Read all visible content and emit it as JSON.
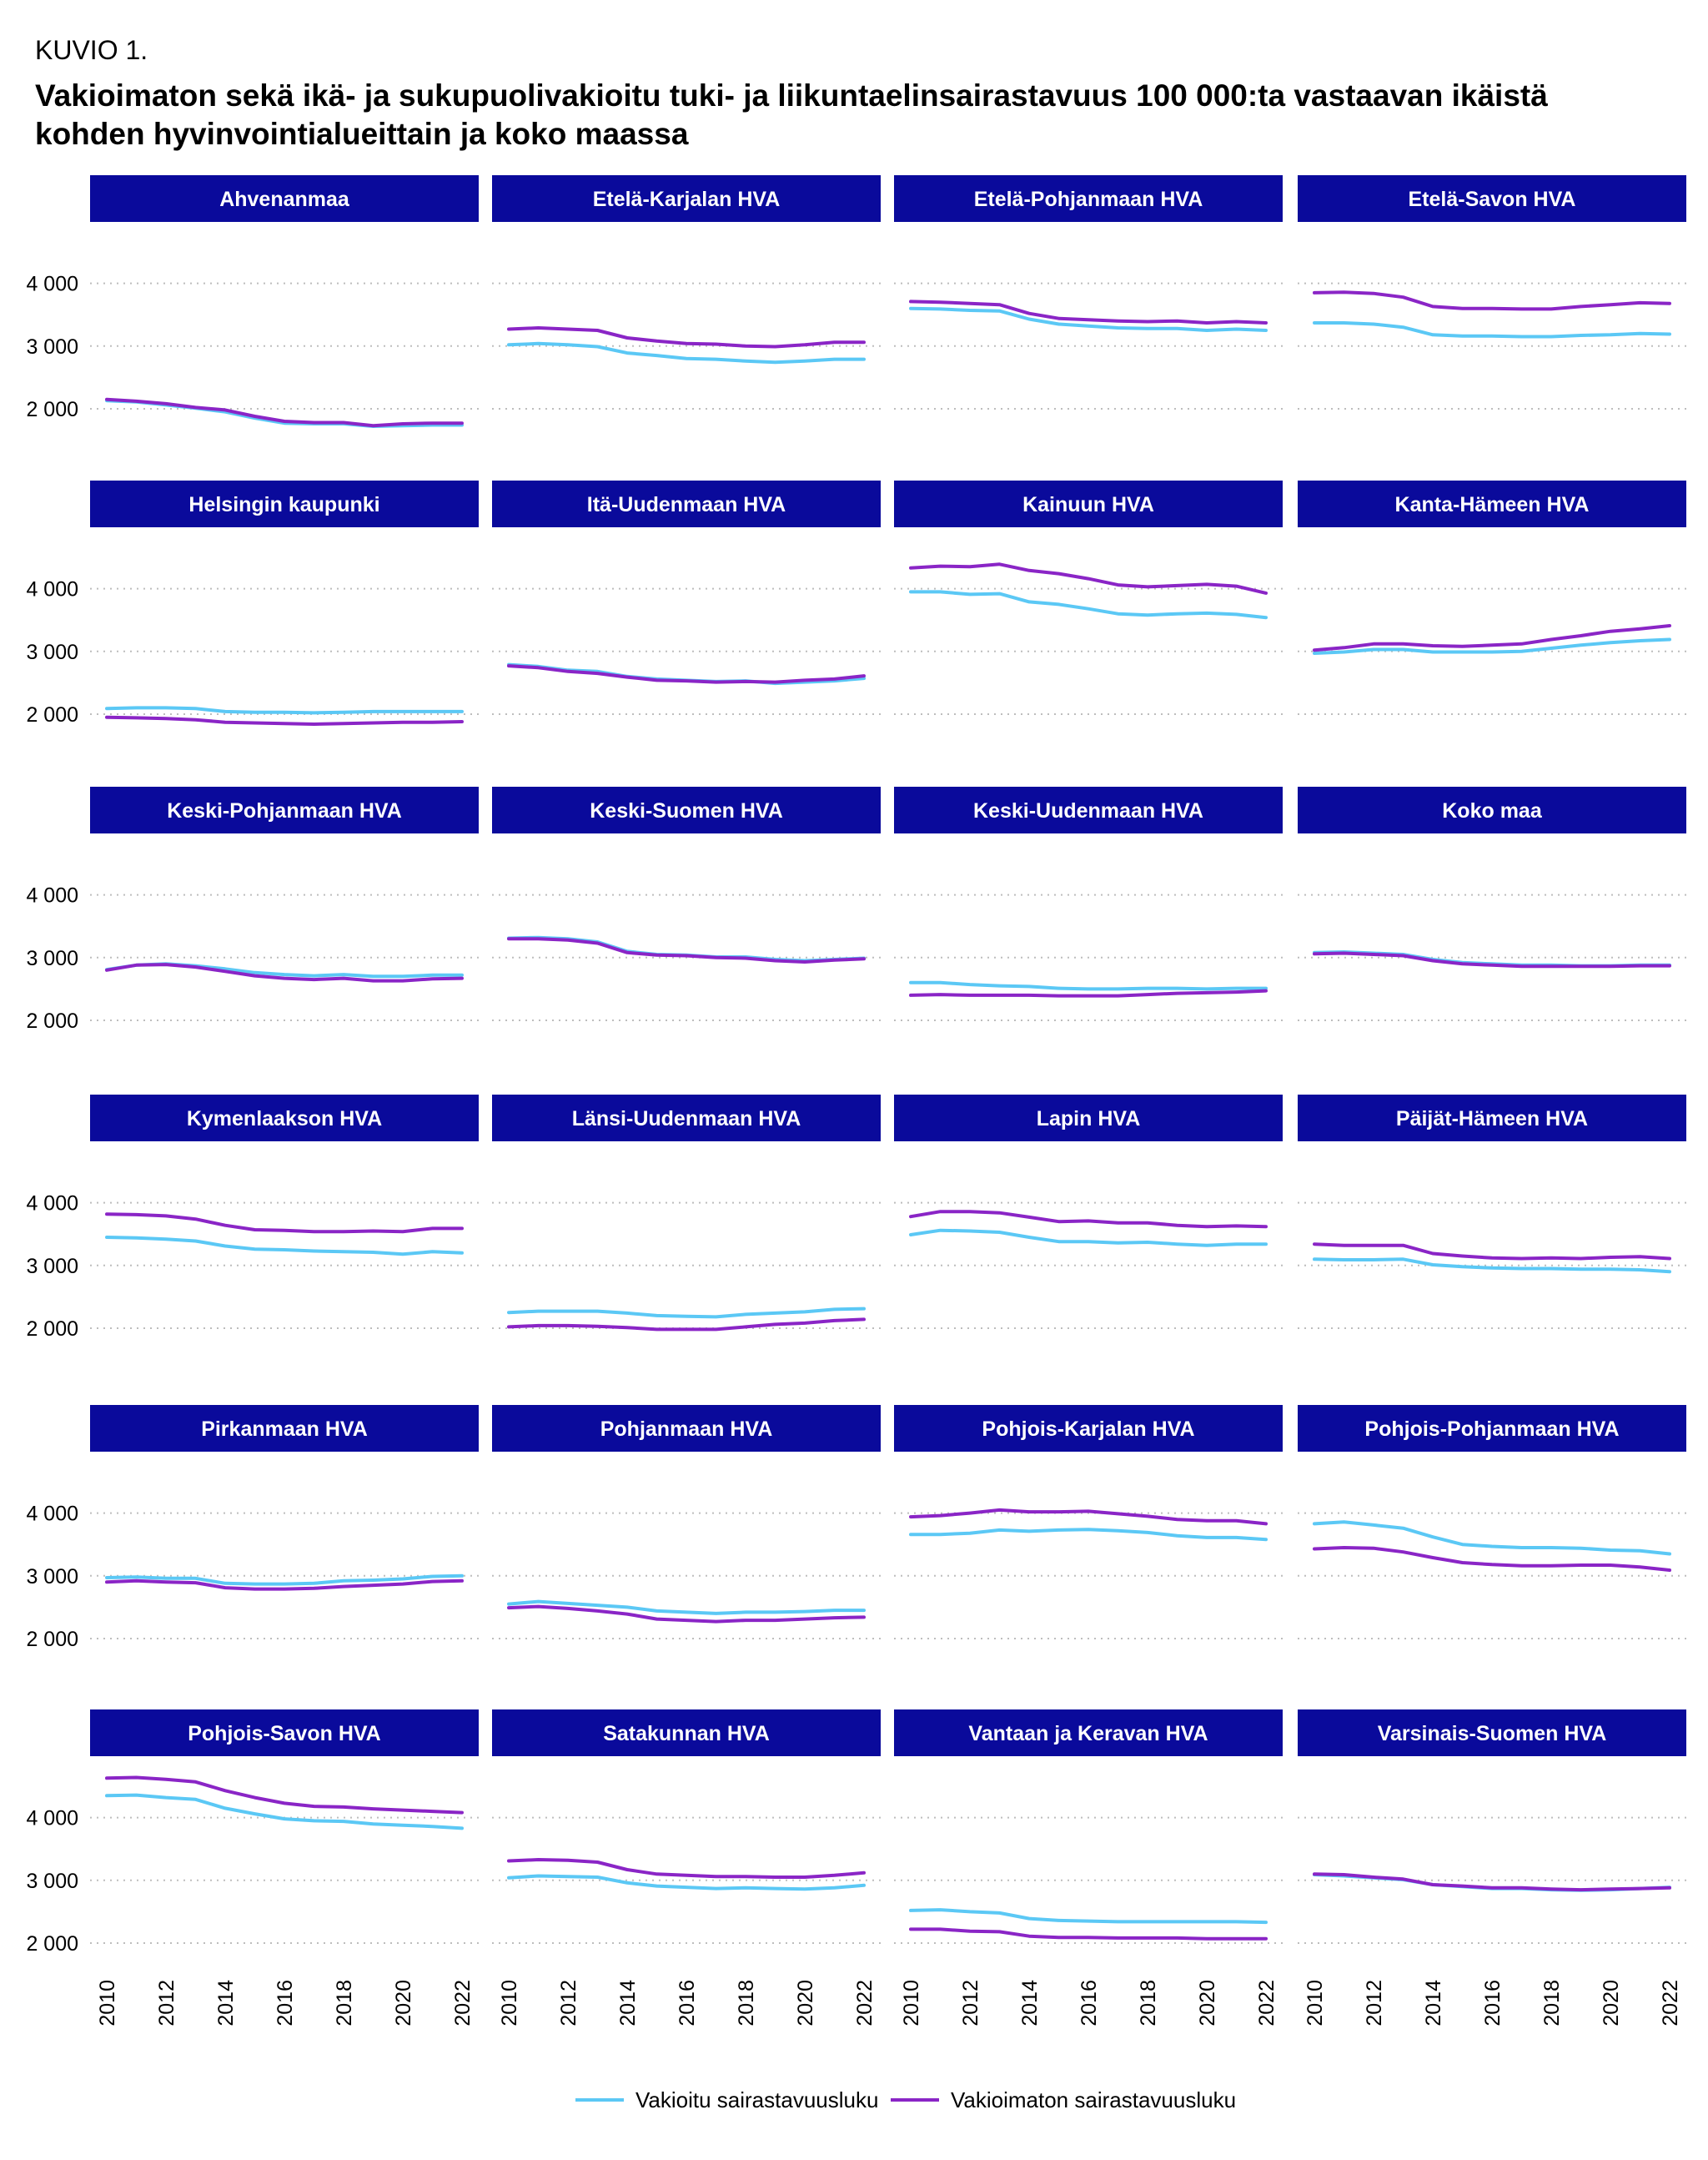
{
  "header": {
    "kuvio": "KUVIO 1.",
    "title": "Vakioimaton sekä ikä- ja sukupuolivakioitu tuki- ja liikuntaelinsairastavuus 100 000:ta vastaavan ikäistä kohden hyvinvointialueittain ja koko maassa"
  },
  "colors": {
    "standardized": "#5bc8f5",
    "unstandardized": "#8a25c6",
    "strip": "#0a0a9b",
    "grid": "#bdbdbd"
  },
  "legend": {
    "standardized_label": "Vakioitu sairastavuusluku",
    "unstandardized_label": "Vakioimaton sairastavuusluku"
  },
  "chart_data": {
    "type": "line",
    "layout": "small-multiples 6x4",
    "grid": "horizontal dotted",
    "legend_placement": "bottom",
    "x": [
      2010,
      2011,
      2012,
      2013,
      2014,
      2015,
      2016,
      2017,
      2018,
      2019,
      2020,
      2021,
      2022
    ],
    "x_ticks": [
      "2010",
      "2012",
      "2014",
      "2016",
      "2018",
      "2020",
      "2022"
    ],
    "y_ticks": [
      2000,
      3000,
      4000
    ],
    "y_tick_labels": [
      "2 000",
      "3 000",
      "4 000"
    ],
    "ylim": [
      1600,
      4900
    ],
    "series_names": [
      "Vakioitu sairastavuusluku",
      "Vakioimaton sairastavuusluku"
    ],
    "panels": [
      {
        "name": "Ahvenanmaa",
        "standardized": [
          2130,
          2110,
          2060,
          2010,
          1950,
          1850,
          1770,
          1760,
          1760,
          1720,
          1730,
          1740,
          1740
        ],
        "unstandardized": [
          2150,
          2120,
          2080,
          2020,
          1980,
          1880,
          1800,
          1780,
          1780,
          1730,
          1760,
          1770,
          1770
        ]
      },
      {
        "name": "Etelä-Karjalan HVA",
        "standardized": [
          3020,
          3040,
          3020,
          2990,
          2890,
          2850,
          2800,
          2790,
          2760,
          2740,
          2760,
          2790,
          2790
        ],
        "unstandardized": [
          3270,
          3290,
          3270,
          3250,
          3130,
          3080,
          3040,
          3030,
          3000,
          2990,
          3020,
          3060,
          3060
        ]
      },
      {
        "name": "Etelä-Pohjanmaan HVA",
        "standardized": [
          3600,
          3590,
          3570,
          3560,
          3430,
          3350,
          3320,
          3290,
          3280,
          3280,
          3250,
          3270,
          3250
        ],
        "unstandardized": [
          3710,
          3700,
          3680,
          3660,
          3520,
          3440,
          3420,
          3400,
          3390,
          3400,
          3370,
          3390,
          3370
        ]
      },
      {
        "name": "Etelä-Savon HVA",
        "standardized": [
          3370,
          3370,
          3350,
          3300,
          3180,
          3160,
          3160,
          3150,
          3150,
          3170,
          3180,
          3200,
          3190
        ],
        "unstandardized": [
          3850,
          3860,
          3840,
          3780,
          3630,
          3600,
          3600,
          3590,
          3590,
          3630,
          3660,
          3690,
          3680
        ]
      },
      {
        "name": "Helsingin kaupunki",
        "standardized": [
          2090,
          2100,
          2100,
          2090,
          2040,
          2030,
          2030,
          2020,
          2030,
          2040,
          2040,
          2040,
          2040
        ],
        "unstandardized": [
          1950,
          1940,
          1930,
          1910,
          1870,
          1860,
          1850,
          1840,
          1850,
          1860,
          1870,
          1870,
          1880
        ]
      },
      {
        "name": "Itä-Uudenmaan HVA",
        "standardized": [
          2790,
          2760,
          2700,
          2680,
          2600,
          2560,
          2540,
          2520,
          2530,
          2490,
          2510,
          2530,
          2570
        ],
        "unstandardized": [
          2770,
          2740,
          2680,
          2650,
          2590,
          2540,
          2530,
          2510,
          2520,
          2510,
          2540,
          2560,
          2610
        ]
      },
      {
        "name": "Kainuun HVA",
        "standardized": [
          3950,
          3950,
          3910,
          3920,
          3790,
          3750,
          3680,
          3600,
          3580,
          3600,
          3610,
          3590,
          3540
        ],
        "unstandardized": [
          4330,
          4360,
          4350,
          4390,
          4290,
          4240,
          4160,
          4060,
          4030,
          4050,
          4070,
          4040,
          3930
        ]
      },
      {
        "name": "Kanta-Hämeen HVA",
        "standardized": [
          2970,
          2990,
          3030,
          3030,
          2990,
          2990,
          2990,
          3000,
          3050,
          3100,
          3140,
          3170,
          3190
        ],
        "unstandardized": [
          3020,
          3060,
          3120,
          3120,
          3090,
          3080,
          3100,
          3120,
          3190,
          3250,
          3320,
          3360,
          3410
        ]
      },
      {
        "name": "Keski-Pohjanmaan HVA",
        "standardized": [
          2810,
          2880,
          2900,
          2870,
          2820,
          2760,
          2730,
          2710,
          2730,
          2700,
          2700,
          2720,
          2720
        ],
        "unstandardized": [
          2800,
          2880,
          2890,
          2850,
          2780,
          2710,
          2670,
          2650,
          2670,
          2630,
          2630,
          2660,
          2670
        ]
      },
      {
        "name": "Keski-Suomen HVA",
        "standardized": [
          3310,
          3320,
          3300,
          3250,
          3100,
          3050,
          3040,
          3010,
          3010,
          2970,
          2950,
          2970,
          2990
        ],
        "unstandardized": [
          3300,
          3300,
          3280,
          3230,
          3080,
          3040,
          3030,
          3000,
          2990,
          2950,
          2930,
          2960,
          2980
        ]
      },
      {
        "name": "Keski-Uudenmaan HVA",
        "standardized": [
          2600,
          2600,
          2570,
          2550,
          2540,
          2510,
          2500,
          2500,
          2510,
          2510,
          2500,
          2510,
          2510
        ],
        "unstandardized": [
          2400,
          2410,
          2400,
          2400,
          2400,
          2390,
          2390,
          2390,
          2410,
          2430,
          2440,
          2450,
          2470
        ]
      },
      {
        "name": "Koko maa",
        "standardized": [
          3080,
          3090,
          3070,
          3050,
          2970,
          2920,
          2900,
          2880,
          2880,
          2870,
          2870,
          2880,
          2880
        ],
        "unstandardized": [
          3060,
          3070,
          3050,
          3030,
          2950,
          2900,
          2880,
          2860,
          2860,
          2860,
          2860,
          2870,
          2870
        ]
      },
      {
        "name": "Kymenlaakson HVA",
        "standardized": [
          3450,
          3440,
          3420,
          3390,
          3310,
          3260,
          3250,
          3230,
          3220,
          3210,
          3180,
          3220,
          3200
        ],
        "unstandardized": [
          3820,
          3810,
          3790,
          3740,
          3640,
          3570,
          3560,
          3540,
          3540,
          3550,
          3540,
          3590,
          3590
        ]
      },
      {
        "name": "Länsi-Uudenmaan HVA",
        "standardized": [
          2250,
          2270,
          2270,
          2270,
          2240,
          2200,
          2190,
          2180,
          2220,
          2240,
          2260,
          2300,
          2310
        ],
        "unstandardized": [
          2020,
          2040,
          2040,
          2030,
          2010,
          1980,
          1980,
          1980,
          2020,
          2060,
          2080,
          2120,
          2140
        ]
      },
      {
        "name": "Lapin HVA",
        "standardized": [
          3490,
          3560,
          3550,
          3530,
          3450,
          3380,
          3380,
          3360,
          3370,
          3340,
          3320,
          3340,
          3340
        ],
        "unstandardized": [
          3780,
          3860,
          3860,
          3840,
          3770,
          3700,
          3710,
          3680,
          3680,
          3640,
          3620,
          3630,
          3620
        ]
      },
      {
        "name": "Päijät-Hämeen HVA",
        "standardized": [
          3100,
          3090,
          3090,
          3100,
          3010,
          2980,
          2960,
          2950,
          2950,
          2940,
          2940,
          2930,
          2900
        ],
        "unstandardized": [
          3340,
          3320,
          3320,
          3320,
          3190,
          3150,
          3120,
          3110,
          3120,
          3110,
          3130,
          3140,
          3110
        ]
      },
      {
        "name": "Pirkanmaan HVA",
        "standardized": [
          2970,
          2980,
          2960,
          2960,
          2880,
          2870,
          2870,
          2880,
          2920,
          2930,
          2950,
          2990,
          3000
        ],
        "unstandardized": [
          2900,
          2920,
          2900,
          2890,
          2810,
          2790,
          2790,
          2800,
          2830,
          2850,
          2870,
          2910,
          2920
        ]
      },
      {
        "name": "Pohjanmaan HVA",
        "standardized": [
          2550,
          2590,
          2560,
          2530,
          2500,
          2440,
          2420,
          2400,
          2420,
          2420,
          2430,
          2450,
          2450
        ],
        "unstandardized": [
          2490,
          2510,
          2480,
          2440,
          2390,
          2310,
          2290,
          2270,
          2290,
          2290,
          2310,
          2330,
          2340
        ]
      },
      {
        "name": "Pohjois-Karjalan HVA",
        "standardized": [
          3660,
          3660,
          3680,
          3730,
          3710,
          3730,
          3740,
          3720,
          3690,
          3640,
          3610,
          3610,
          3580
        ],
        "unstandardized": [
          3940,
          3960,
          4000,
          4050,
          4020,
          4020,
          4030,
          3990,
          3950,
          3900,
          3880,
          3880,
          3830
        ]
      },
      {
        "name": "Pohjois-Pohjanmaan HVA",
        "standardized": [
          3830,
          3860,
          3810,
          3760,
          3620,
          3500,
          3470,
          3450,
          3450,
          3440,
          3410,
          3400,
          3350
        ],
        "unstandardized": [
          3430,
          3450,
          3440,
          3380,
          3290,
          3210,
          3180,
          3160,
          3160,
          3170,
          3170,
          3140,
          3090
        ]
      },
      {
        "name": "Pohjois-Savon HVA",
        "standardized": [
          4350,
          4360,
          4320,
          4290,
          4150,
          4060,
          3980,
          3950,
          3940,
          3900,
          3880,
          3860,
          3830
        ],
        "unstandardized": [
          4630,
          4640,
          4610,
          4570,
          4430,
          4320,
          4230,
          4180,
          4170,
          4140,
          4120,
          4100,
          4080
        ]
      },
      {
        "name": "Satakunnan HVA",
        "standardized": [
          3040,
          3070,
          3060,
          3050,
          2960,
          2910,
          2890,
          2870,
          2880,
          2870,
          2860,
          2880,
          2920
        ],
        "unstandardized": [
          3310,
          3330,
          3320,
          3290,
          3170,
          3100,
          3080,
          3060,
          3060,
          3050,
          3050,
          3080,
          3120
        ]
      },
      {
        "name": "Vantaan ja Keravan HVA",
        "standardized": [
          2520,
          2530,
          2500,
          2480,
          2390,
          2360,
          2350,
          2340,
          2340,
          2340,
          2340,
          2340,
          2330
        ],
        "unstandardized": [
          2220,
          2220,
          2190,
          2180,
          2110,
          2090,
          2090,
          2080,
          2080,
          2080,
          2070,
          2070,
          2070
        ]
      },
      {
        "name": "Varsinais-Suomen HVA",
        "standardized": [
          3090,
          3070,
          3040,
          3010,
          2930,
          2900,
          2870,
          2870,
          2850,
          2840,
          2850,
          2870,
          2890
        ],
        "unstandardized": [
          3100,
          3090,
          3050,
          3020,
          2930,
          2910,
          2880,
          2880,
          2860,
          2850,
          2860,
          2870,
          2880
        ]
      }
    ]
  }
}
